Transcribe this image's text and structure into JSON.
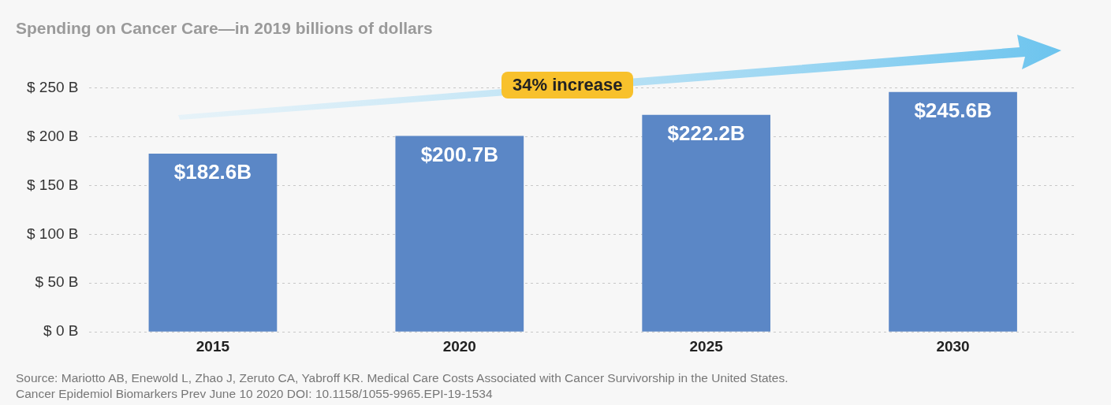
{
  "chart_data": {
    "type": "bar",
    "title": "Spending on Cancer Care—in 2019 billions of dollars",
    "categories": [
      "2015",
      "2020",
      "2025",
      "2030"
    ],
    "values": [
      182.6,
      200.7,
      222.2,
      245.6
    ],
    "value_labels": [
      "$182.6B",
      "$200.7B",
      "$222.2B",
      "$245.6B"
    ],
    "color": "#5b87c6",
    "ylim": [
      0,
      250
    ],
    "yticks": [
      {
        "value": 0,
        "label": "$ 0 B"
      },
      {
        "value": 50,
        "label": "$ 50 B"
      },
      {
        "value": 100,
        "label": "$ 100 B"
      },
      {
        "value": 150,
        "label": "$ 150 B"
      },
      {
        "value": 200,
        "label": "$ 200 B"
      },
      {
        "value": 250,
        "label": "$ 250 B"
      }
    ],
    "grid": "y",
    "annotations": [
      "34% increase",
      "Source: Mariotto AB, Enewold L, Zhao J, Zeruto CA, Yabroff KR. Medical Care Costs Associated with Cancer Survivorship in the United States.\nCancer Epidemiol Biomarkers Prev June 10 2020 DOI: 10.1158/1055-9965.EPI-19-1534"
    ]
  }
}
